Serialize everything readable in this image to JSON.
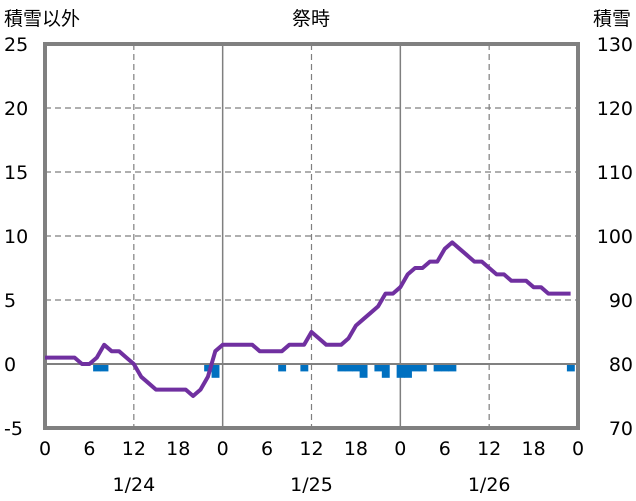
{
  "chart_data": {
    "type": "line",
    "title": "祭時",
    "ylabel_left": "積雪以外",
    "ylabel_right": "積雪",
    "ylim_left": [
      -5,
      25
    ],
    "yticks_left": [
      "25",
      "20",
      "15",
      "10",
      "5",
      "0",
      "-5"
    ],
    "ylim_right": [
      70,
      130
    ],
    "yticks_right": [
      "130",
      "120",
      "110",
      "100",
      "90",
      "80",
      "70"
    ],
    "xlim_hours": [
      0,
      72
    ],
    "xticks": [
      "0",
      "6",
      "12",
      "18",
      "0",
      "6",
      "12",
      "18",
      "0",
      "6",
      "12",
      "18",
      "0"
    ],
    "day_labels": [
      {
        "label": "1/24",
        "x": 12
      },
      {
        "label": "1/25",
        "x": 36
      },
      {
        "label": "1/26",
        "x": 60
      }
    ],
    "grid": "dashed",
    "colors": {
      "snow_depth": "#7030a0",
      "precipitation": "#0070c0",
      "frame": "#808080"
    },
    "snow_depth": {
      "axis": "right",
      "x": [
        0,
        1,
        2,
        3,
        4,
        5,
        6,
        7,
        8,
        9,
        10,
        11,
        12,
        13,
        14,
        15,
        16,
        17,
        18,
        19,
        20,
        21,
        22,
        23,
        24,
        25,
        26,
        27,
        28,
        29,
        30,
        31,
        32,
        33,
        34,
        35,
        36,
        37,
        38,
        39,
        40,
        41,
        42,
        43,
        44,
        45,
        46,
        47,
        48,
        49,
        50,
        51,
        52,
        53,
        54,
        55,
        56,
        57,
        58,
        59,
        60,
        61,
        62,
        63,
        64,
        65,
        66,
        67,
        68,
        69,
        70,
        71
      ],
      "values": [
        81,
        81,
        81,
        81,
        81,
        80,
        80,
        81,
        83,
        82,
        82,
        81,
        80,
        78,
        77,
        76,
        76,
        76,
        76,
        76,
        75,
        76,
        78,
        82,
        83,
        83,
        83,
        83,
        83,
        82,
        82,
        82,
        82,
        83,
        83,
        83,
        85,
        84,
        83,
        83,
        83,
        84,
        86,
        87,
        88,
        89,
        91,
        91,
        92,
        94,
        95,
        95,
        96,
        96,
        98,
        99,
        98,
        97,
        96,
        96,
        95,
        94,
        94,
        93,
        93,
        93,
        92,
        92,
        91,
        91,
        91,
        91
      ]
    },
    "precipitation": {
      "axis": "left",
      "x": [
        7,
        8,
        22,
        23,
        32,
        35,
        40,
        41,
        42,
        43,
        45,
        46,
        48,
        49,
        50,
        51,
        53,
        54,
        55,
        71
      ],
      "values": [
        -0.5,
        -0.5,
        -0.5,
        -1,
        -0.5,
        -0.5,
        -0.5,
        -0.5,
        -0.5,
        -1,
        -0.5,
        -1,
        -1,
        -1,
        -0.5,
        -0.5,
        -0.5,
        -0.5,
        -0.5,
        -0.5
      ]
    }
  }
}
